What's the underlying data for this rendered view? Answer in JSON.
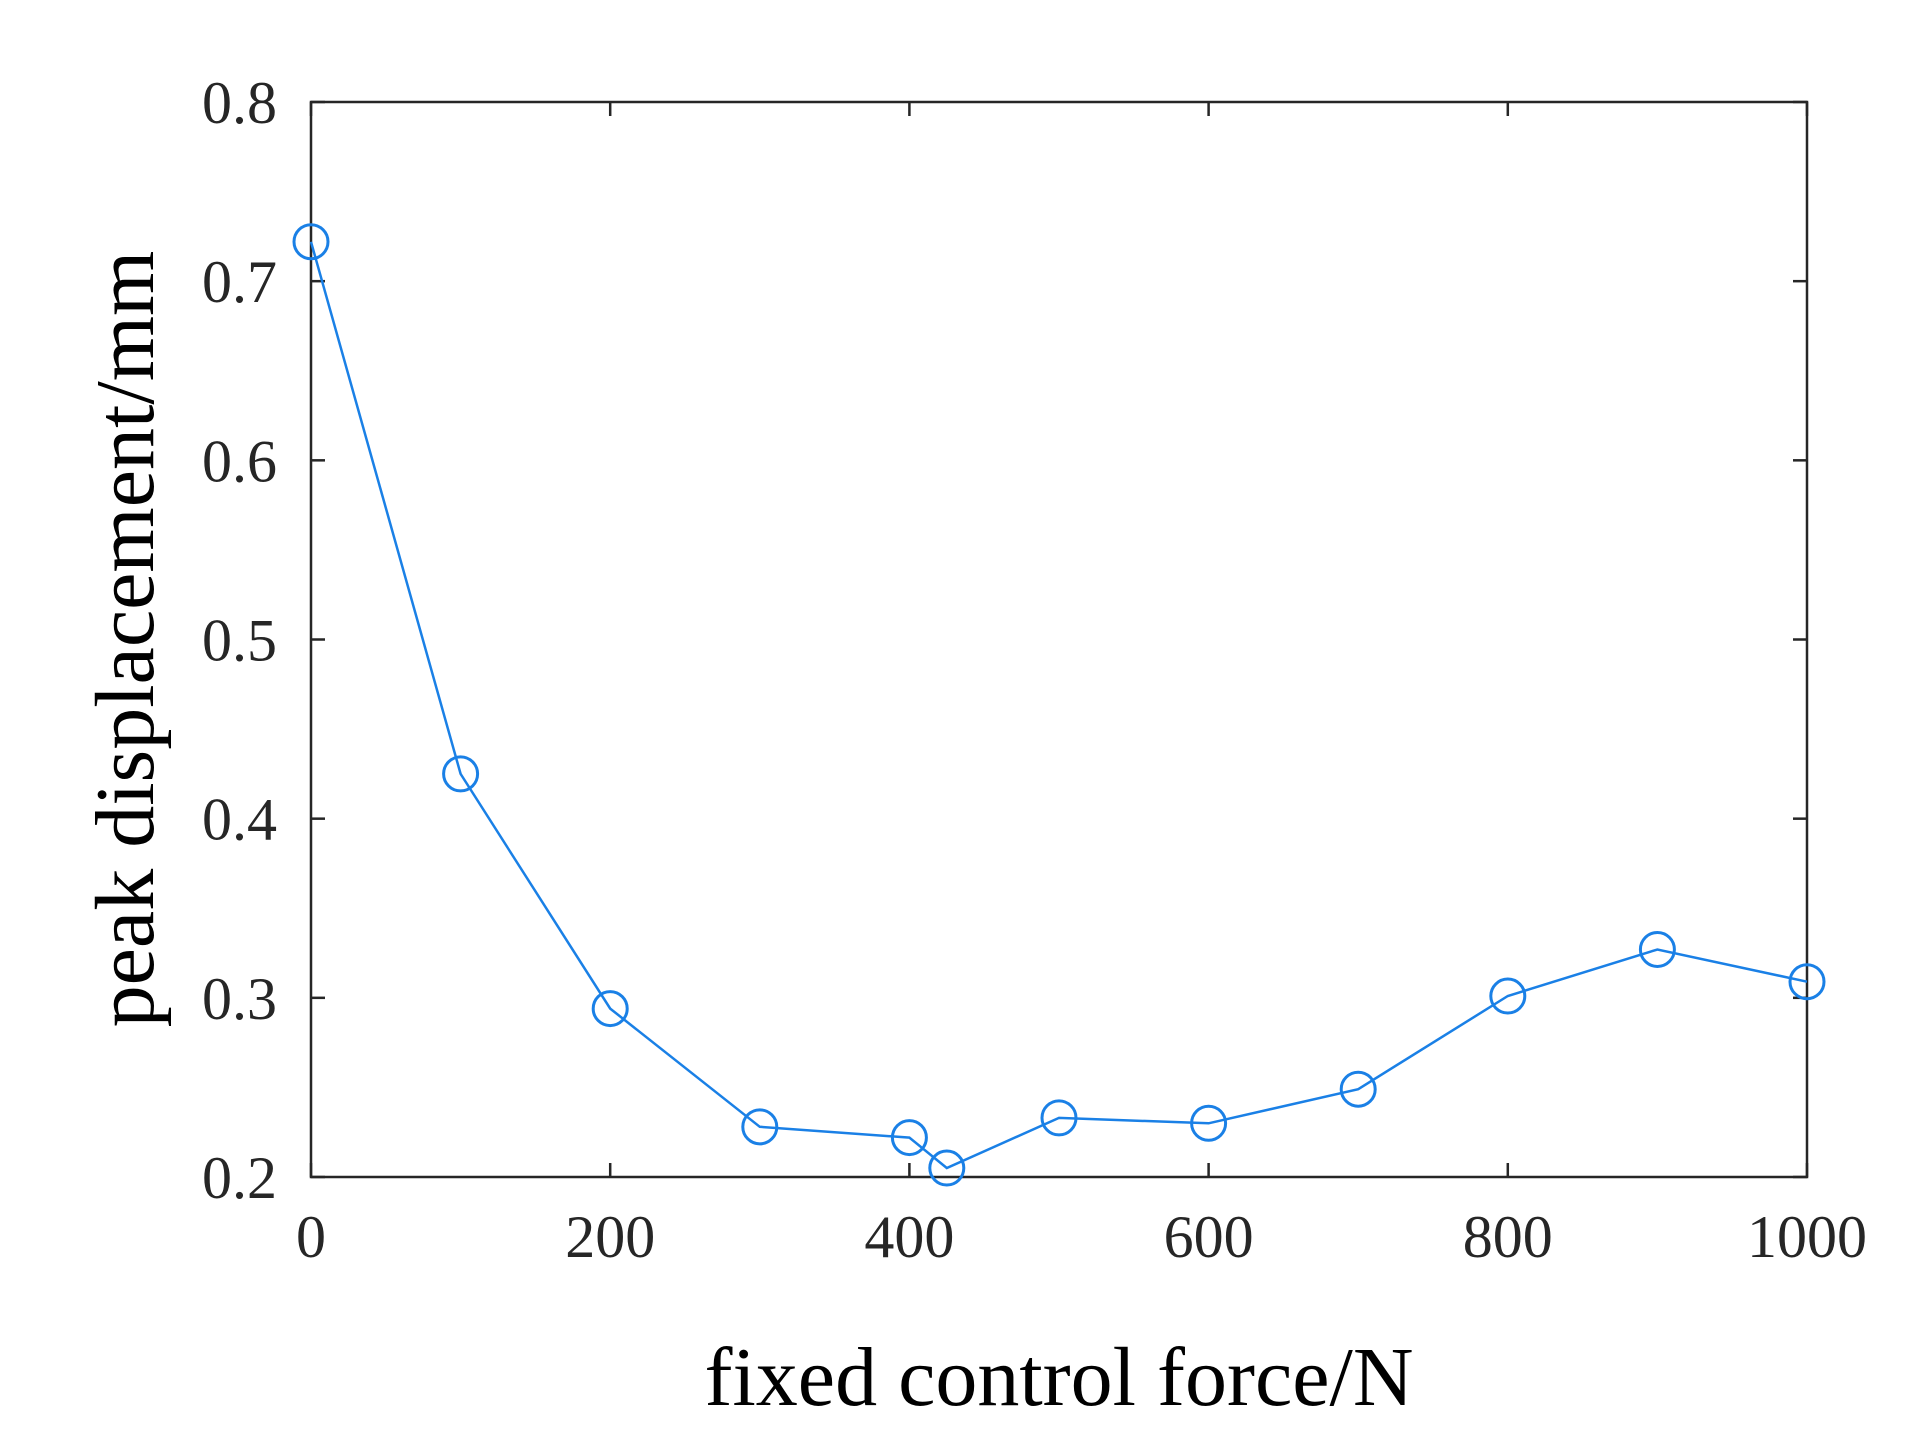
{
  "chart_data": {
    "type": "line",
    "xlabel": "fixed control force/N",
    "ylabel": "peak displacement/mm",
    "xlim": [
      0,
      1000
    ],
    "ylim": [
      0.2,
      0.8
    ],
    "xticks": [
      0,
      200,
      400,
      600,
      800,
      1000
    ],
    "yticks": [
      0.2,
      0.3,
      0.4,
      0.5,
      0.6,
      0.7,
      0.8
    ],
    "xtick_labels": [
      "0",
      "200",
      "400",
      "600",
      "800",
      "1000"
    ],
    "ytick_labels": [
      "0.2",
      "0.3",
      "0.4",
      "0.5",
      "0.6",
      "0.7",
      "0.8"
    ],
    "grid": false,
    "series": [
      {
        "color": "#1a80e6",
        "marker": "open-circle",
        "x": [
          0,
          100,
          200,
          300,
          400,
          425,
          500,
          600,
          700,
          800,
          900,
          1000
        ],
        "y": [
          0.722,
          0.425,
          0.294,
          0.228,
          0.222,
          0.205,
          0.233,
          0.23,
          0.249,
          0.301,
          0.327,
          0.309
        ]
      }
    ]
  }
}
